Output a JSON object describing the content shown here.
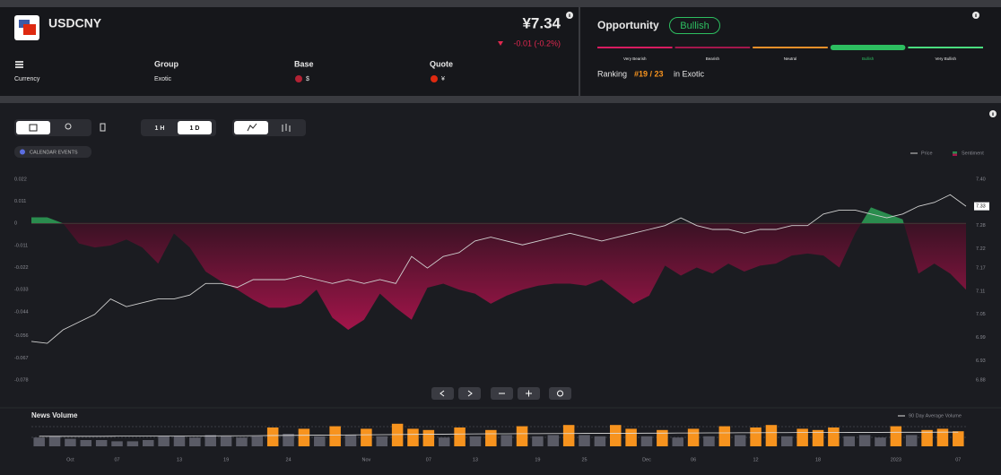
{
  "header": {
    "symbol": "USDCNY",
    "price": "¥7.34",
    "change": "-0.01 (-0.2%)",
    "type": "Currency",
    "group_label": "Group",
    "group": "Exotic",
    "base_label": "Base",
    "base": "$",
    "quote_label": "Quote",
    "quote": "¥"
  },
  "opportunity": {
    "title": "Opportunity",
    "rating": "Bullish",
    "scale": [
      "Very Bearish",
      "Bearish",
      "Neutral",
      "Bullish",
      "Very Bullish"
    ],
    "scale_colors": [
      "#d81b60",
      "#a3174c",
      "#f0902a",
      "#2dbe60",
      "#4ade80"
    ],
    "ranking_label": "Ranking",
    "rank": "#19 / 23",
    "ranking_suffix": "in Exotic"
  },
  "toolbar": {
    "intervals": [
      "1 H",
      "1 D"
    ],
    "calendar": "CALENDAR EVENTS"
  },
  "chart_data": [
    {
      "type": "area-line",
      "series": [
        {
          "name": "Price",
          "color": "#d0d0d0",
          "axis": "y2",
          "values": [
            6.98,
            6.975,
            7.01,
            7.03,
            7.05,
            7.09,
            7.07,
            7.08,
            7.09,
            7.09,
            7.1,
            7.13,
            7.13,
            7.12,
            7.14,
            7.14,
            7.14,
            7.15,
            7.14,
            7.13,
            7.14,
            7.13,
            7.14,
            7.13,
            7.2,
            7.17,
            7.2,
            7.21,
            7.24,
            7.25,
            7.24,
            7.23,
            7.24,
            7.25,
            7.26,
            7.25,
            7.24,
            7.25,
            7.26,
            7.27,
            7.28,
            7.3,
            7.28,
            7.27,
            7.27,
            7.26,
            7.27,
            7.27,
            7.28,
            7.28,
            7.31,
            7.32,
            7.32,
            7.31,
            7.3,
            7.31,
            7.33,
            7.34,
            7.36,
            7.33
          ]
        },
        {
          "name": "Sentiment",
          "color": "#a3154a",
          "positive_color": "#2a8c4e",
          "values": [
            0.003,
            0.003,
            0,
            -0.01,
            -0.012,
            -0.011,
            -0.008,
            -0.012,
            -0.02,
            -0.005,
            -0.012,
            -0.024,
            -0.029,
            -0.033,
            -0.038,
            -0.042,
            -0.042,
            -0.04,
            -0.033,
            -0.047,
            -0.053,
            -0.048,
            -0.035,
            -0.042,
            -0.048,
            -0.032,
            -0.03,
            -0.033,
            -0.035,
            -0.04,
            -0.036,
            -0.033,
            -0.031,
            -0.03,
            -0.03,
            -0.031,
            -0.028,
            -0.034,
            -0.04,
            -0.036,
            -0.021,
            -0.026,
            -0.022,
            -0.025,
            -0.02,
            -0.024,
            -0.021,
            -0.02,
            -0.016,
            -0.015,
            -0.016,
            -0.022,
            -0.005,
            0.008,
            0.005,
            0.002,
            -0.025,
            -0.02,
            -0.025,
            -0.033
          ]
        }
      ],
      "ylim": [
        -0.078,
        0.022
      ],
      "yticks": [
        0.022,
        0.011,
        0,
        -0.011,
        -0.022,
        -0.033,
        -0.044,
        -0.056,
        -0.067,
        -0.078
      ],
      "y2lim": [
        6.88,
        7.4
      ],
      "y2ticks": [
        {
          "value": 7.4,
          "label": "7.40"
        },
        7.28,
        7.22,
        7.17,
        7.11,
        7.05,
        6.99,
        6.93,
        6.88
      ]
    },
    {
      "type": "bar",
      "title": "News Volume",
      "categories": [
        null,
        null,
        "Oct",
        null,
        null,
        "07",
        null,
        null,
        null,
        "13",
        null,
        null,
        "19",
        null,
        null,
        null,
        "24",
        null,
        null,
        null,
        null,
        "Nov",
        null,
        null,
        null,
        "07",
        null,
        null,
        "13",
        null,
        null,
        null,
        "19",
        null,
        null,
        "25",
        null,
        null,
        null,
        "Dec",
        null,
        null,
        "06",
        null,
        null,
        null,
        "12",
        null,
        null,
        null,
        "18",
        null,
        null,
        null,
        null,
        "2023",
        null,
        null,
        null,
        "07"
      ],
      "values": [
        7,
        8,
        6,
        5,
        5,
        4,
        4,
        5,
        8,
        8,
        7,
        9,
        8,
        7,
        8,
        15,
        10,
        14,
        8,
        16,
        9,
        14,
        8,
        18,
        14,
        13,
        7,
        15,
        8,
        13,
        9,
        16,
        8,
        9,
        17,
        9,
        8,
        17,
        14,
        8,
        13,
        7,
        14,
        8,
        16,
        9,
        15,
        17,
        8,
        14,
        13,
        15,
        8,
        9,
        7,
        16,
        9,
        13,
        14,
        12
      ],
      "colors": [
        "#5a5b66",
        "#5a5b66",
        "#5a5b66",
        "#5a5b66",
        "#5a5b66",
        "#5a5b66",
        "#5a5b66",
        "#5a5b66",
        "#5a5b66",
        "#5a5b66",
        "#5a5b66",
        "#5a5b66",
        "#5a5b66",
        "#5a5b66",
        "#5a5b66",
        "#f7931e",
        "#5a5b66",
        "#f7931e",
        "#5a5b66",
        "#f7931e",
        "#5a5b66",
        "#f7931e",
        "#5a5b66",
        "#f7931e",
        "#f7931e",
        "#f7931e",
        "#5a5b66",
        "#f7931e",
        "#5a5b66",
        "#f7931e",
        "#5a5b66",
        "#f7931e",
        "#5a5b66",
        "#5a5b66",
        "#f7931e",
        "#5a5b66",
        "#5a5b66",
        "#f7931e",
        "#f7931e",
        "#5a5b66",
        "#f7931e",
        "#5a5b66",
        "#f7931e",
        "#5a5b66",
        "#f7931e",
        "#5a5b66",
        "#f7931e",
        "#f7931e",
        "#5a5b66",
        "#f7931e",
        "#f7931e",
        "#f7931e",
        "#5a5b66",
        "#5a5b66",
        "#5a5b66",
        "#f7931e",
        "#5a5b66",
        "#f7931e",
        "#f7931e",
        "#f7931e"
      ],
      "average": {
        "name": "90 Day Average Volume",
        "color": "#e0e0e0",
        "values": [
          8,
          8,
          8,
          8,
          8,
          8.1,
          8.1,
          8.1,
          8.2,
          8.2,
          8.3,
          8.3,
          8.4,
          8.4,
          8.5,
          8.6,
          8.7,
          8.8,
          8.9,
          9,
          9.1,
          9.2,
          9.3,
          9.4,
          9.5,
          9.6,
          9.7,
          9.8,
          9.9,
          10,
          10,
          10.1,
          10.1,
          10.2,
          10.2,
          10.3,
          10.3,
          10.4,
          10.4,
          10.5,
          10.5,
          10.6,
          10.6,
          10.7,
          10.7,
          10.8,
          10.8,
          10.9,
          10.9,
          11,
          11,
          11,
          11.1,
          11.1,
          11.1,
          11.2,
          11.2,
          11.2,
          11.3,
          11.3
        ]
      },
      "ylim": [
        0,
        20
      ]
    }
  ]
}
